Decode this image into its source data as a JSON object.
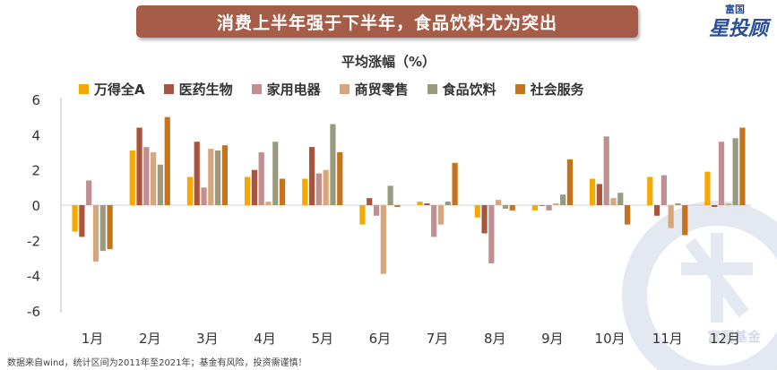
{
  "banner": {
    "title": "消费上半年强于下半年，食品饮料尤为突出"
  },
  "brand": {
    "top": "富国",
    "main": "星投顾"
  },
  "watermark": {
    "text": "富国基金"
  },
  "footnote": "数据来自wind，统计区间为2011年至2021年；基金有风险，投资需谨慎！",
  "colors": {
    "banner": "#a65c46",
    "series": [
      "#f5a800",
      "#a9553e",
      "#c18f8f",
      "#d7a77b",
      "#9a9a80",
      "#c6731c"
    ]
  },
  "chart_data": {
    "type": "bar",
    "title": "平均涨幅（%）",
    "categories": [
      "1月",
      "2月",
      "3月",
      "4月",
      "5月",
      "6月",
      "7月",
      "8月",
      "9月",
      "10月",
      "11月",
      "12月"
    ],
    "ylim": [
      -6,
      6
    ],
    "yticks": [
      6,
      4,
      2,
      0,
      -2,
      -4,
      -6
    ],
    "grid": false,
    "legend": "top",
    "series": [
      {
        "name": "万得全A",
        "values": [
          -1.5,
          3.1,
          1.6,
          1.6,
          1.5,
          -1.1,
          0.2,
          -0.7,
          -0.3,
          1.5,
          1.6,
          1.9
        ]
      },
      {
        "name": "医药生物",
        "values": [
          -1.8,
          4.4,
          3.6,
          2.0,
          3.3,
          0.4,
          0.1,
          -1.6,
          0.0,
          1.2,
          -0.6,
          -0.1
        ]
      },
      {
        "name": "家用电器",
        "values": [
          1.4,
          3.3,
          1.0,
          3.0,
          1.8,
          -0.6,
          -1.8,
          -3.3,
          -0.3,
          3.9,
          1.7,
          3.6
        ]
      },
      {
        "name": "商贸零售",
        "values": [
          -3.2,
          3.0,
          3.2,
          0.2,
          2.0,
          -3.9,
          -1.1,
          0.3,
          0.1,
          0.4,
          -1.3,
          0.1
        ]
      },
      {
        "name": "食品饮料",
        "values": [
          -2.6,
          2.3,
          3.1,
          3.6,
          4.6,
          1.1,
          0.2,
          -0.2,
          0.6,
          0.7,
          0.1,
          3.8
        ]
      },
      {
        "name": "社会服务",
        "values": [
          -2.5,
          5.0,
          3.4,
          1.5,
          3.0,
          -0.1,
          2.4,
          -0.3,
          2.6,
          -1.1,
          -1.7,
          4.4
        ]
      }
    ]
  }
}
